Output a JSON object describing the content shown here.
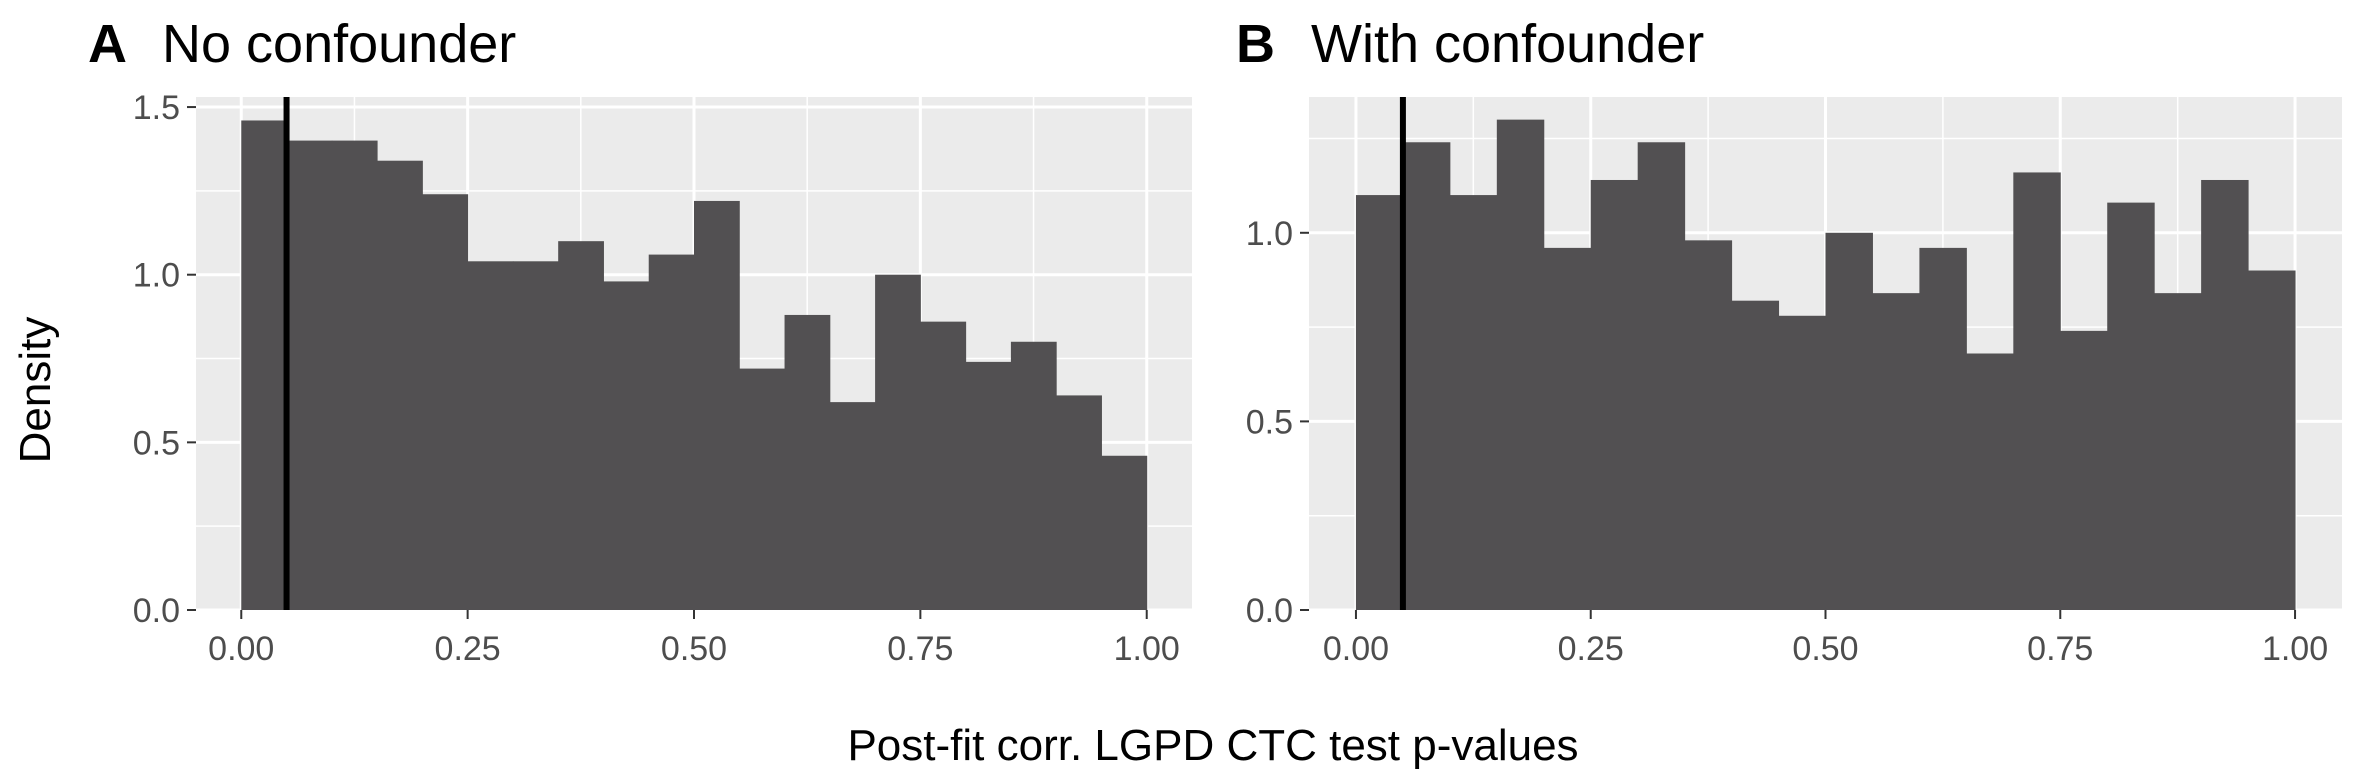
{
  "xlabel": "Post-fit corr. LGPD CTC test p-values",
  "ylabel": "Density",
  "colors": {
    "panel_background": "#ebebeb",
    "grid": "#ffffff",
    "bar_fill": "#525052",
    "reference_line": "#000000",
    "tick_text": "#4d4d4d"
  },
  "chart_data": [
    {
      "type": "bar",
      "tag": "A",
      "title": "No confounder",
      "xlim": [
        -0.05,
        1.05
      ],
      "ylim": [
        0,
        1.53
      ],
      "xticks": [
        0.0,
        0.25,
        0.5,
        0.75,
        1.0
      ],
      "xtick_labels": [
        "0.00",
        "0.25",
        "0.50",
        "0.75",
        "1.00"
      ],
      "yticks": [
        0.0,
        0.5,
        1.0,
        1.5
      ],
      "ytick_labels": [
        "0.0",
        "0.5",
        "1.0",
        "1.5"
      ],
      "bin_width": 0.05,
      "bin_starts": [
        0.0,
        0.05,
        0.1,
        0.15,
        0.2,
        0.25,
        0.3,
        0.35,
        0.4,
        0.45,
        0.5,
        0.55,
        0.6,
        0.65,
        0.7,
        0.75,
        0.8,
        0.85,
        0.9,
        0.95
      ],
      "values": [
        1.46,
        1.4,
        1.4,
        1.34,
        1.24,
        1.04,
        1.04,
        1.1,
        0.98,
        1.06,
        1.22,
        0.72,
        0.88,
        0.62,
        1.0,
        0.86,
        0.74,
        0.8,
        0.64,
        0.46
      ],
      "vline": 0.05,
      "grid": true
    },
    {
      "type": "bar",
      "tag": "B",
      "title": "With confounder",
      "xlim": [
        -0.05,
        1.05
      ],
      "ylim": [
        0,
        1.36
      ],
      "xticks": [
        0.0,
        0.25,
        0.5,
        0.75,
        1.0
      ],
      "xtick_labels": [
        "0.00",
        "0.25",
        "0.50",
        "0.75",
        "1.00"
      ],
      "yticks": [
        0.0,
        0.5,
        1.0
      ],
      "ytick_labels": [
        "0.0",
        "0.5",
        "1.0"
      ],
      "bin_width": 0.05,
      "bin_starts": [
        0.0,
        0.05,
        0.1,
        0.15,
        0.2,
        0.25,
        0.3,
        0.35,
        0.4,
        0.45,
        0.5,
        0.55,
        0.6,
        0.65,
        0.7,
        0.75,
        0.8,
        0.85,
        0.9,
        0.95
      ],
      "values": [
        1.1,
        1.24,
        1.1,
        1.3,
        0.96,
        1.14,
        1.24,
        0.98,
        0.82,
        0.78,
        1.0,
        0.84,
        0.96,
        0.68,
        1.16,
        0.74,
        1.08,
        0.84,
        1.14,
        0.9
      ],
      "vline": 0.05,
      "grid": true
    }
  ]
}
